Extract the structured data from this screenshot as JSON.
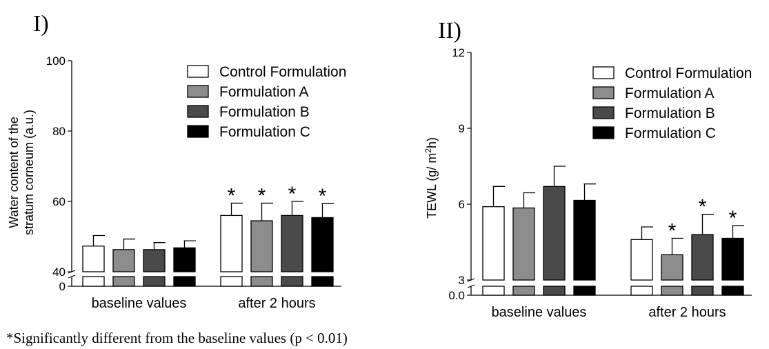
{
  "footnote": "*Significantly different from the baseline values (p < 0.01)",
  "chart_data": [
    {
      "type": "bar",
      "panel_label": "I)",
      "title": "",
      "xlabel": "",
      "ylabel_line1": "Water content of the",
      "ylabel_line2": "stratum corneum (a.u.)",
      "categories": [
        "baseline values",
        "after 2 hours"
      ],
      "ylim": [
        0,
        100
      ],
      "axis_break": [
        0,
        40
      ],
      "yticks": [
        0,
        40,
        60,
        80,
        100
      ],
      "legend_position": "top-right",
      "significance_marker": "*",
      "series": [
        {
          "name": "Control Formulation",
          "color": "#ffffff",
          "values": [
            47.3,
            56.0
          ],
          "errors": [
            3.0,
            3.5
          ],
          "significant": [
            false,
            true
          ]
        },
        {
          "name": "Formulation A",
          "color": "#8c8c8c",
          "values": [
            46.3,
            54.5
          ],
          "errors": [
            3.0,
            5.0
          ],
          "significant": [
            false,
            true
          ]
        },
        {
          "name": "Formulation B",
          "color": "#4a4a4a",
          "values": [
            46.3,
            56.0
          ],
          "errors": [
            2.0,
            4.0
          ],
          "significant": [
            false,
            true
          ]
        },
        {
          "name": "Formulation C",
          "color": "#000000",
          "values": [
            46.8,
            55.4
          ],
          "errors": [
            2.0,
            4.0
          ],
          "significant": [
            false,
            true
          ]
        }
      ]
    },
    {
      "type": "bar",
      "panel_label": "II)",
      "title": "",
      "xlabel": "",
      "ylabel_line1": "TEWL (g/ m",
      "ylabel_sup": "2",
      "ylabel_line2": "h)",
      "categories": [
        "baseline values",
        "after 2 hours"
      ],
      "ylim": [
        0,
        12
      ],
      "axis_break": [
        0,
        3
      ],
      "yticks": [
        0.0,
        3,
        6,
        9,
        12
      ],
      "ytick_labels": [
        "0.0",
        "3",
        "6",
        "9",
        "12"
      ],
      "legend_position": "top-right",
      "significance_marker": "*",
      "series": [
        {
          "name": "Control Formulation",
          "color": "#ffffff",
          "values": [
            5.9,
            4.6
          ],
          "errors": [
            0.8,
            0.5
          ],
          "significant": [
            false,
            false
          ]
        },
        {
          "name": "Formulation A",
          "color": "#8c8c8c",
          "values": [
            5.85,
            4.0
          ],
          "errors": [
            0.6,
            0.65
          ],
          "significant": [
            false,
            true
          ]
        },
        {
          "name": "Formulation B",
          "color": "#4a4a4a",
          "values": [
            6.7,
            4.8
          ],
          "errors": [
            0.8,
            0.8
          ],
          "significant": [
            false,
            true
          ]
        },
        {
          "name": "Formulation C",
          "color": "#000000",
          "values": [
            6.15,
            4.65
          ],
          "errors": [
            0.65,
            0.5
          ],
          "significant": [
            false,
            true
          ]
        }
      ]
    }
  ]
}
